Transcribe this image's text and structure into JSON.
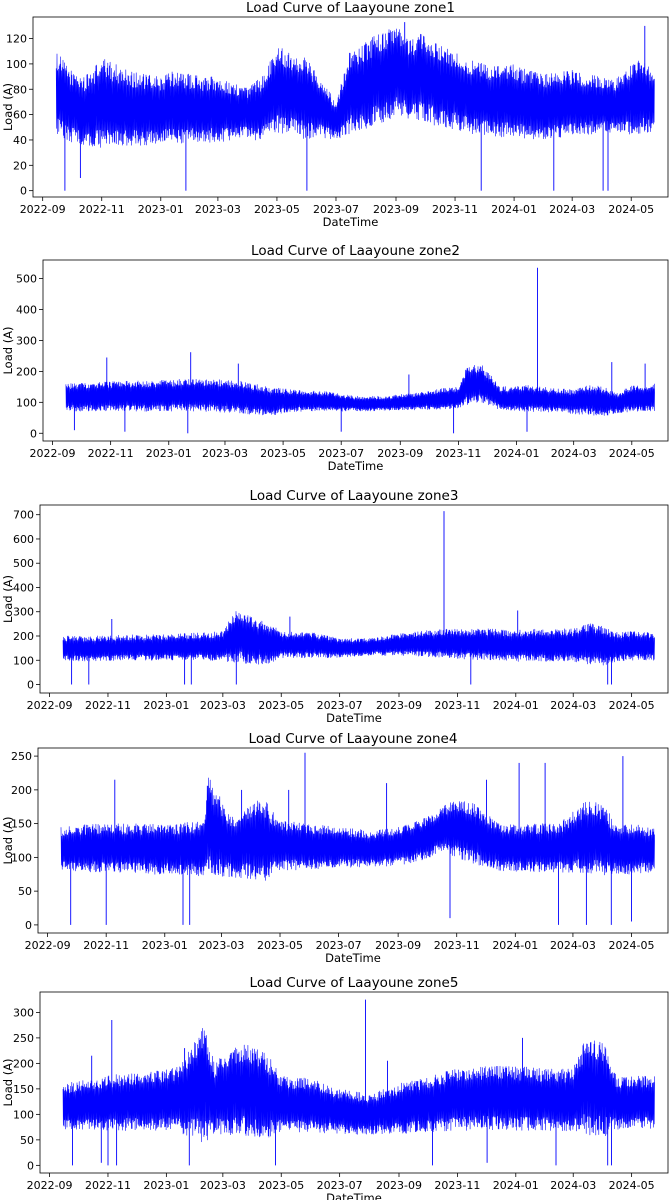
{
  "chart_data": [
    {
      "type": "line",
      "title": "Load Curve of Laayoune zone1",
      "xlabel": "DateTime",
      "ylabel": "Load (A)",
      "x_range": [
        "2022-08-22",
        "2024-06-08"
      ],
      "x_ticks": [
        "2022-09",
        "2022-11",
        "2023-01",
        "2023-03",
        "2023-05",
        "2023-07",
        "2023-09",
        "2023-11",
        "2024-01",
        "2024-03",
        "2024-05"
      ],
      "ylim": [
        -5,
        137
      ],
      "y_ticks": [
        0,
        20,
        40,
        60,
        80,
        100,
        120
      ],
      "grid": false,
      "color": "#0000ff",
      "series": [
        {
          "x": [
            "2022-09-15",
            "2022-10-01",
            "2022-10-15",
            "2022-11-01",
            "2022-11-15",
            "2022-12-01",
            "2022-12-15",
            "2023-01-01",
            "2023-01-15",
            "2023-02-01",
            "2023-02-15",
            "2023-03-01",
            "2023-03-15",
            "2023-04-01",
            "2023-04-15",
            "2023-05-01",
            "2023-05-15",
            "2023-06-01",
            "2023-06-15",
            "2023-07-01",
            "2023-07-15",
            "2023-08-01",
            "2023-08-15",
            "2023-09-01",
            "2023-09-15",
            "2023-10-01",
            "2023-10-15",
            "2023-11-01",
            "2023-11-15",
            "2023-12-01",
            "2023-12-15",
            "2024-01-01",
            "2024-01-15",
            "2024-02-01",
            "2024-02-15",
            "2024-03-01",
            "2024-03-15",
            "2024-04-01",
            "2024-04-15",
            "2024-05-01",
            "2024-05-15",
            "2024-05-25"
          ],
          "low": [
            45,
            38,
            36,
            33,
            34,
            35,
            36,
            36,
            37,
            37,
            38,
            38,
            40,
            42,
            38,
            45,
            44,
            40,
            42,
            40,
            45,
            48,
            52,
            58,
            56,
            55,
            50,
            48,
            45,
            44,
            42,
            42,
            40,
            40,
            42,
            42,
            44,
            46,
            45,
            44,
            46,
            45
          ],
          "high": [
            110,
            95,
            90,
            105,
            100,
            95,
            92,
            90,
            95,
            92,
            90,
            90,
            85,
            82,
            90,
            115,
            110,
            105,
            90,
            70,
            110,
            118,
            125,
            130,
            120,
            125,
            115,
            110,
            105,
            100,
            98,
            100,
            95,
            92,
            95,
            95,
            92,
            90,
            88,
            100,
            105,
            90
          ],
          "spikes": [
            [
              "2022-09-24",
              0
            ],
            [
              "2022-10-10",
              10
            ],
            [
              "2023-01-27",
              0
            ],
            [
              "2023-06-01",
              0
            ],
            [
              "2023-11-28",
              0
            ],
            [
              "2024-02-11",
              0
            ],
            [
              "2024-04-02",
              0
            ],
            [
              "2024-04-07",
              0
            ],
            [
              "2024-05-15",
              130
            ],
            [
              "2023-09-10",
              133
            ]
          ]
        }
      ]
    },
    {
      "type": "line",
      "title": "Load Curve of Laayoune zone2",
      "xlabel": "DateTime",
      "ylabel": "Load (A)",
      "x_range": [
        "2022-08-22",
        "2024-06-08"
      ],
      "x_ticks": [
        "2022-09",
        "2022-11",
        "2023-01",
        "2023-03",
        "2023-05",
        "2023-07",
        "2023-09",
        "2023-11",
        "2024-01",
        "2024-03",
        "2024-05"
      ],
      "ylim": [
        -25,
        560
      ],
      "y_ticks": [
        0,
        100,
        200,
        300,
        400,
        500
      ],
      "grid": false,
      "color": "#0000ff",
      "series": [
        {
          "x": [
            "2022-09-15",
            "2022-10-15",
            "2022-11-15",
            "2022-12-15",
            "2023-01-15",
            "2023-02-15",
            "2023-03-15",
            "2023-04-01",
            "2023-04-15",
            "2023-05-01",
            "2023-05-15",
            "2023-06-15",
            "2023-07-15",
            "2023-08-15",
            "2023-09-15",
            "2023-10-15",
            "2023-11-01",
            "2023-11-10",
            "2023-11-25",
            "2023-12-15",
            "2024-01-15",
            "2024-02-15",
            "2024-03-01",
            "2024-03-15",
            "2024-04-01",
            "2024-04-15",
            "2024-05-01",
            "2024-05-25"
          ],
          "low": [
            72,
            70,
            72,
            70,
            72,
            70,
            65,
            60,
            55,
            65,
            70,
            70,
            72,
            72,
            75,
            78,
            80,
            90,
            100,
            75,
            70,
            68,
            62,
            60,
            55,
            65,
            70,
            72
          ],
          "high": [
            160,
            165,
            170,
            170,
            175,
            175,
            170,
            160,
            150,
            145,
            140,
            135,
            120,
            120,
            130,
            145,
            150,
            220,
            225,
            150,
            155,
            145,
            140,
            160,
            150,
            130,
            155,
            160
          ],
          "spikes": [
            [
              "2022-09-24",
              10
            ],
            [
              "2022-10-28",
              245
            ],
            [
              "2022-11-16",
              5
            ],
            [
              "2023-01-24",
              262
            ],
            [
              "2023-01-21",
              0
            ],
            [
              "2023-03-15",
              225
            ],
            [
              "2023-07-01",
              5
            ],
            [
              "2023-09-10",
              190
            ],
            [
              "2023-10-27",
              0
            ],
            [
              "2024-01-23",
              535
            ],
            [
              "2024-01-12",
              5
            ],
            [
              "2024-04-10",
              230
            ],
            [
              "2024-05-15",
              225
            ]
          ]
        }
      ]
    },
    {
      "type": "line",
      "title": "Load Curve of Laayoune zone3",
      "xlabel": "DateTime",
      "ylabel": "Load (A)",
      "x_range": [
        "2022-08-22",
        "2024-06-08"
      ],
      "x_ticks": [
        "2022-09",
        "2022-11",
        "2023-01",
        "2023-03",
        "2023-05",
        "2023-07",
        "2023-09",
        "2023-11",
        "2024-01",
        "2024-03",
        "2024-05"
      ],
      "ylim": [
        -35,
        740
      ],
      "y_ticks": [
        0,
        100,
        200,
        300,
        400,
        500,
        600,
        700
      ],
      "grid": false,
      "color": "#0000ff",
      "series": [
        {
          "x": [
            "2022-09-15",
            "2022-10-15",
            "2022-11-15",
            "2022-12-15",
            "2023-01-15",
            "2023-02-15",
            "2023-03-01",
            "2023-03-15",
            "2023-04-01",
            "2023-04-15",
            "2023-05-01",
            "2023-06-01",
            "2023-07-01",
            "2023-08-01",
            "2023-09-01",
            "2023-10-01",
            "2023-11-01",
            "2023-12-01",
            "2024-01-01",
            "2024-02-01",
            "2024-03-01",
            "2024-03-15",
            "2024-04-01",
            "2024-04-15",
            "2024-05-01",
            "2024-05-25"
          ],
          "low": [
            100,
            95,
            100,
            100,
            100,
            100,
            95,
            90,
            85,
            80,
            110,
            110,
            110,
            120,
            120,
            115,
            105,
            100,
            95,
            95,
            90,
            85,
            75,
            95,
            100,
            100
          ],
          "high": [
            200,
            200,
            205,
            205,
            210,
            215,
            220,
            310,
            280,
            260,
            220,
            215,
            190,
            190,
            210,
            225,
            230,
            230,
            225,
            230,
            230,
            255,
            240,
            215,
            220,
            215
          ],
          "spikes": [
            [
              "2022-09-24",
              0
            ],
            [
              "2022-10-12",
              0
            ],
            [
              "2022-11-05",
              270
            ],
            [
              "2023-01-20",
              0
            ],
            [
              "2023-01-27",
              0
            ],
            [
              "2023-03-15",
              0
            ],
            [
              "2023-05-10",
              280
            ],
            [
              "2023-10-18",
              715
            ],
            [
              "2023-11-15",
              0
            ],
            [
              "2024-01-03",
              305
            ],
            [
              "2024-04-06",
              0
            ],
            [
              "2024-04-10",
              0
            ]
          ]
        }
      ]
    },
    {
      "type": "line",
      "title": "Load Curve of Laayoune zone4",
      "xlabel": "DateTime",
      "ylabel": "Load (A)",
      "x_range": [
        "2022-08-22",
        "2024-06-08"
      ],
      "x_ticks": [
        "2022-09",
        "2022-11",
        "2023-01",
        "2023-03",
        "2023-05",
        "2023-07",
        "2023-09",
        "2023-11",
        "2024-01",
        "2024-03",
        "2024-05"
      ],
      "ylim": [
        -12,
        262
      ],
      "y_ticks": [
        0,
        50,
        100,
        150,
        200,
        250
      ],
      "grid": false,
      "color": "#0000ff",
      "series": [
        {
          "x": [
            "2022-09-15",
            "2022-10-15",
            "2022-11-15",
            "2022-12-15",
            "2023-01-15",
            "2023-02-10",
            "2023-02-15",
            "2023-03-15",
            "2023-04-01",
            "2023-04-15",
            "2023-05-01",
            "2023-06-01",
            "2023-07-01",
            "2023-08-01",
            "2023-09-01",
            "2023-10-01",
            "2023-10-15",
            "2023-11-01",
            "2023-11-20",
            "2023-12-15",
            "2024-01-15",
            "2024-02-15",
            "2024-03-15",
            "2024-04-01",
            "2024-04-15",
            "2024-05-01",
            "2024-05-25"
          ],
          "low": [
            80,
            78,
            78,
            75,
            75,
            72,
            72,
            70,
            68,
            65,
            80,
            82,
            85,
            85,
            88,
            95,
            110,
            100,
            90,
            80,
            78,
            78,
            75,
            70,
            75,
            75,
            78
          ],
          "high": [
            145,
            150,
            150,
            150,
            150,
            155,
            220,
            155,
            185,
            185,
            155,
            150,
            145,
            140,
            145,
            160,
            175,
            185,
            180,
            150,
            150,
            150,
            185,
            180,
            150,
            150,
            145
          ],
          "spikes": [
            [
              "2022-09-25",
              0
            ],
            [
              "2022-11-01",
              0
            ],
            [
              "2022-11-10",
              215
            ],
            [
              "2023-01-20",
              0
            ],
            [
              "2023-01-27",
              0
            ],
            [
              "2023-03-22",
              200
            ],
            [
              "2023-05-10",
              200
            ],
            [
              "2023-05-27",
              255
            ],
            [
              "2023-08-20",
              210
            ],
            [
              "2023-10-25",
              10
            ],
            [
              "2023-12-02",
              215
            ],
            [
              "2024-01-05",
              240
            ],
            [
              "2024-02-01",
              240
            ],
            [
              "2024-02-15",
              0
            ],
            [
              "2024-03-15",
              0
            ],
            [
              "2024-04-10",
              0
            ],
            [
              "2024-04-22",
              250
            ],
            [
              "2024-05-01",
              5
            ]
          ]
        }
      ]
    },
    {
      "type": "line",
      "title": "Load Curve of Laayoune zone5",
      "xlabel": "DateTime",
      "ylabel": "Load (A)",
      "x_range": [
        "2022-08-22",
        "2024-06-08"
      ],
      "x_ticks": [
        "2022-09",
        "2022-11",
        "2023-01",
        "2023-03",
        "2023-05",
        "2023-07",
        "2023-09",
        "2023-11",
        "2024-01",
        "2024-03",
        "2024-05"
      ],
      "ylim": [
        -15,
        340
      ],
      "y_ticks": [
        0,
        50,
        100,
        150,
        200,
        250,
        300
      ],
      "grid": false,
      "color": "#0000ff",
      "series": [
        {
          "x": [
            "2022-09-15",
            "2022-10-15",
            "2022-11-15",
            "2022-12-15",
            "2023-01-15",
            "2023-02-10",
            "2023-02-20",
            "2023-03-15",
            "2023-04-01",
            "2023-04-15",
            "2023-05-01",
            "2023-06-01",
            "2023-07-01",
            "2023-08-01",
            "2023-09-01",
            "2023-10-01",
            "2023-11-01",
            "2023-12-01",
            "2024-01-01",
            "2024-02-01",
            "2024-03-01",
            "2024-03-15",
            "2024-04-01",
            "2024-04-15",
            "2024-05-01",
            "2024-05-25"
          ],
          "low": [
            70,
            70,
            68,
            68,
            65,
            40,
            60,
            60,
            55,
            50,
            65,
            65,
            62,
            60,
            62,
            65,
            68,
            70,
            68,
            68,
            65,
            60,
            55,
            70,
            72,
            72
          ],
          "high": [
            160,
            170,
            180,
            185,
            195,
            275,
            200,
            240,
            235,
            225,
            175,
            170,
            150,
            140,
            160,
            175,
            190,
            195,
            195,
            190,
            190,
            255,
            245,
            175,
            175,
            175
          ],
          "spikes": [
            [
              "2022-09-25",
              0
            ],
            [
              "2022-10-15",
              215
            ],
            [
              "2022-10-25",
              5
            ],
            [
              "2022-11-05",
              285
            ],
            [
              "2022-11-01",
              0
            ],
            [
              "2022-11-10",
              0
            ],
            [
              "2023-01-20",
              230
            ],
            [
              "2023-01-25",
              0
            ],
            [
              "2023-04-25",
              0
            ],
            [
              "2023-07-28",
              325
            ],
            [
              "2023-08-20",
              205
            ],
            [
              "2023-10-06",
              0
            ],
            [
              "2023-12-02",
              5
            ],
            [
              "2024-01-08",
              250
            ],
            [
              "2024-02-12",
              0
            ],
            [
              "2024-04-06",
              0
            ],
            [
              "2024-04-10",
              0
            ]
          ]
        }
      ]
    }
  ]
}
